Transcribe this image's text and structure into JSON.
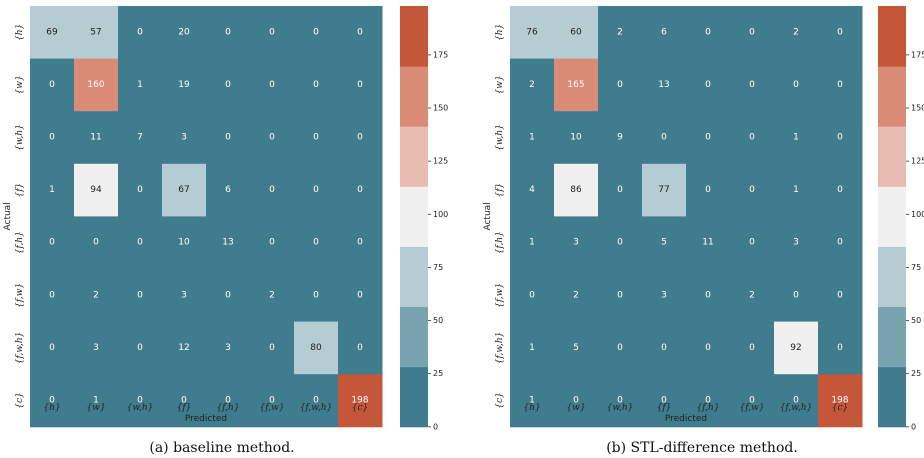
{
  "colors": {
    "scale": [
      "#3f7d8e",
      "#78a4b0",
      "#b5ccd2",
      "#f0f0f0",
      "#e8bcb0",
      "#d88c76",
      "#c4573a"
    ],
    "text_dark": "#222222",
    "text_light": "#ffffff"
  },
  "chart_data": [
    {
      "type": "heatmap",
      "caption": "(a) baseline method.",
      "xlabel": "Predicted",
      "ylabel": "Actual",
      "categories": [
        "{h}",
        "{w}",
        "{w,h}",
        "{f}",
        "{f,h}",
        "{f,w}",
        "{f,w,h}",
        "{c}"
      ],
      "matrix": [
        [
          69,
          57,
          0,
          20,
          0,
          0,
          0,
          0
        ],
        [
          0,
          160,
          1,
          19,
          0,
          0,
          0,
          0
        ],
        [
          0,
          11,
          7,
          3,
          0,
          0,
          0,
          0
        ],
        [
          1,
          94,
          0,
          67,
          6,
          0,
          0,
          0
        ],
        [
          0,
          0,
          0,
          10,
          13,
          0,
          0,
          0
        ],
        [
          0,
          2,
          0,
          3,
          0,
          2,
          0,
          0
        ],
        [
          0,
          3,
          0,
          12,
          3,
          0,
          80,
          0
        ],
        [
          0,
          1,
          0,
          0,
          0,
          0,
          0,
          198
        ]
      ],
      "colorbar": {
        "range": [
          0,
          198
        ],
        "ticks": [
          0,
          25,
          50,
          75,
          100,
          125,
          150,
          175
        ]
      }
    },
    {
      "type": "heatmap",
      "caption": "(b) STL-difference method.",
      "xlabel": "Predicted",
      "ylabel": "Actual",
      "categories": [
        "{h}",
        "{w}",
        "{w,h}",
        "{f}",
        "{f,h}",
        "{f,w}",
        "{f,w,h}",
        "{c}"
      ],
      "matrix": [
        [
          76,
          60,
          2,
          6,
          0,
          0,
          2,
          0
        ],
        [
          2,
          165,
          0,
          13,
          0,
          0,
          0,
          0
        ],
        [
          1,
          10,
          9,
          0,
          0,
          0,
          1,
          0
        ],
        [
          4,
          86,
          0,
          77,
          0,
          0,
          1,
          0
        ],
        [
          1,
          3,
          0,
          5,
          11,
          0,
          3,
          0
        ],
        [
          0,
          2,
          0,
          3,
          0,
          2,
          0,
          0
        ],
        [
          1,
          5,
          0,
          0,
          0,
          0,
          92,
          0
        ],
        [
          1,
          0,
          0,
          0,
          0,
          0,
          0,
          198
        ]
      ],
      "colorbar": {
        "range": [
          0,
          198
        ],
        "ticks": [
          0,
          25,
          50,
          75,
          100,
          125,
          150,
          175
        ]
      }
    }
  ]
}
